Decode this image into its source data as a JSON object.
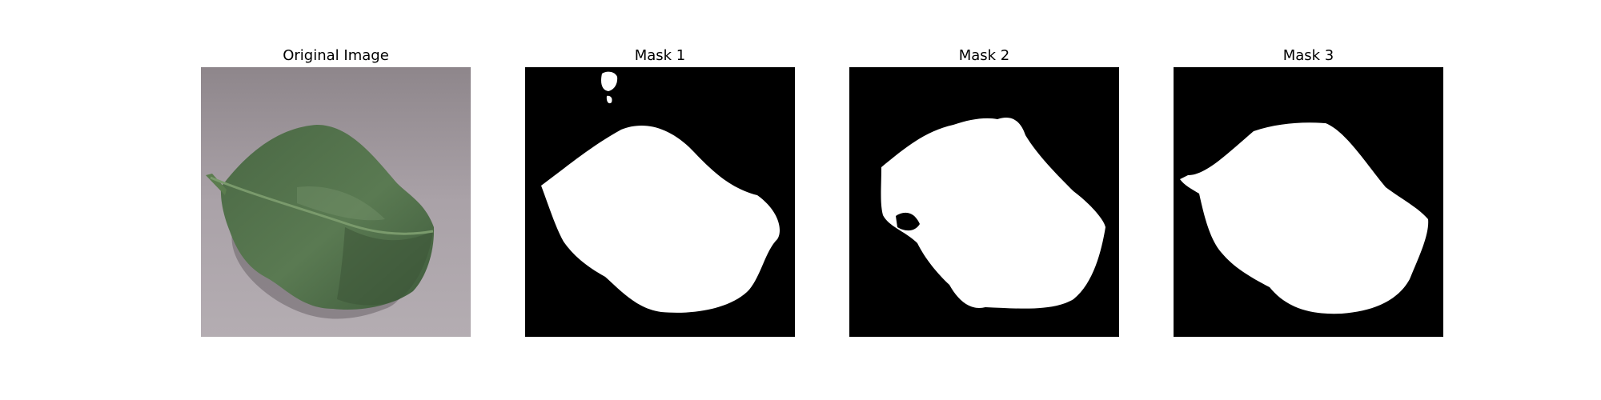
{
  "panels": [
    {
      "title": "Original Image"
    },
    {
      "title": "Mask 1"
    },
    {
      "title": "Mask 2"
    },
    {
      "title": "Mask 3"
    }
  ],
  "colors": {
    "background_gray": "#aca4aa",
    "leaf_green": "#4e6b48",
    "leaf_dark": "#3b5238",
    "vein": "#6f8f62",
    "shadow": "#5a5458",
    "mask_background": "#000000",
    "mask_foreground": "#ffffff"
  }
}
